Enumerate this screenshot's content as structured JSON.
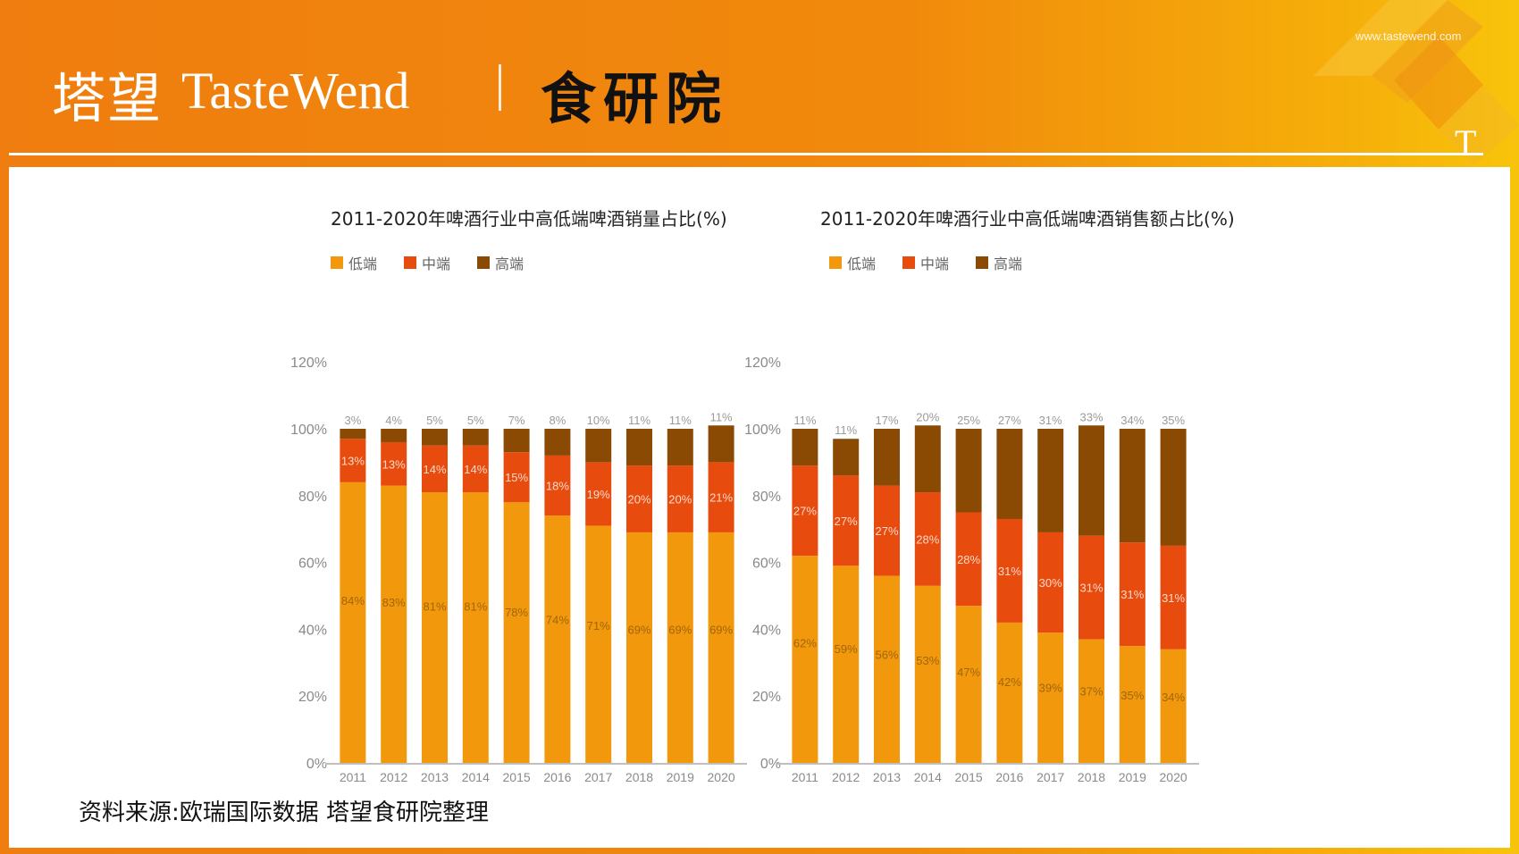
{
  "header": {
    "logo_cn": "塔望",
    "logo_en": "TasteWend",
    "institute": "食研院",
    "url": "www.tastewend.com",
    "t_mark": "T"
  },
  "colors": {
    "low": "#f2980c",
    "mid": "#e84b0e",
    "high": "#8b4a04",
    "axis_text": "#8a8a8a"
  },
  "legend": {
    "low": "低端",
    "mid": "中端",
    "high": "高端"
  },
  "source": "资料来源:欧瑞国际数据 塔望食研院整理",
  "chart_data": [
    {
      "type": "bar",
      "stacked": true,
      "title": "2011-2020年啤酒行业中高低端啤酒销量占比(%)",
      "categories": [
        "2011",
        "2012",
        "2013",
        "2014",
        "2015",
        "2016",
        "2017",
        "2018",
        "2019",
        "2020"
      ],
      "yticks": [
        "0%",
        "20%",
        "40%",
        "60%",
        "80%",
        "100%",
        "120%"
      ],
      "ylim": [
        0,
        120
      ],
      "series": [
        {
          "name": "低端",
          "values": [
            84,
            83,
            81,
            81,
            78,
            74,
            71,
            69,
            69,
            69
          ],
          "labels": [
            "84%",
            "83%",
            "81%",
            "81%",
            "78%",
            "74%",
            "71%",
            "69%",
            "69%",
            "69%"
          ]
        },
        {
          "name": "中端",
          "values": [
            13,
            13,
            14,
            14,
            15,
            18,
            19,
            20,
            20,
            21
          ],
          "labels": [
            "13%",
            "13%",
            "14%",
            "14%",
            "15%",
            "18%",
            "19%",
            "20%",
            "20%",
            "21%"
          ]
        },
        {
          "name": "高端",
          "values": [
            3,
            4,
            5,
            5,
            7,
            8,
            10,
            11,
            11,
            11
          ],
          "labels": [
            "3%",
            "4%",
            "5%",
            "5%",
            "7%",
            "8%",
            "10%",
            "11%",
            "11%",
            "11%"
          ]
        }
      ]
    },
    {
      "type": "bar",
      "stacked": true,
      "title": "2011-2020年啤酒行业中高低端啤酒销售额占比(%)",
      "categories": [
        "2011",
        "2012",
        "2013",
        "2014",
        "2015",
        "2016",
        "2017",
        "2018",
        "2019",
        "2020"
      ],
      "yticks": [
        "0%",
        "20%",
        "40%",
        "60%",
        "80%",
        "100%",
        "120%"
      ],
      "ylim": [
        0,
        120
      ],
      "series": [
        {
          "name": "低端",
          "values": [
            62,
            59,
            56,
            53,
            47,
            42,
            39,
            37,
            35,
            34
          ],
          "labels": [
            "62%",
            "59%",
            "56%",
            "53%",
            "47%",
            "42%",
            "39%",
            "37%",
            "35%",
            "34%"
          ]
        },
        {
          "name": "中端",
          "values": [
            27,
            27,
            27,
            28,
            28,
            31,
            30,
            31,
            31,
            31
          ],
          "labels": [
            "27%",
            "27%",
            "27%",
            "28%",
            "28%",
            "31%",
            "30%",
            "31%",
            "31%",
            "31%"
          ]
        },
        {
          "name": "高端",
          "values": [
            11,
            11,
            17,
            20,
            25,
            27,
            31,
            33,
            34,
            35
          ],
          "labels": [
            "11%",
            "11%",
            "17%",
            "20%",
            "25%",
            "27%",
            "31%",
            "33%",
            "34%",
            "35%"
          ]
        }
      ]
    }
  ]
}
